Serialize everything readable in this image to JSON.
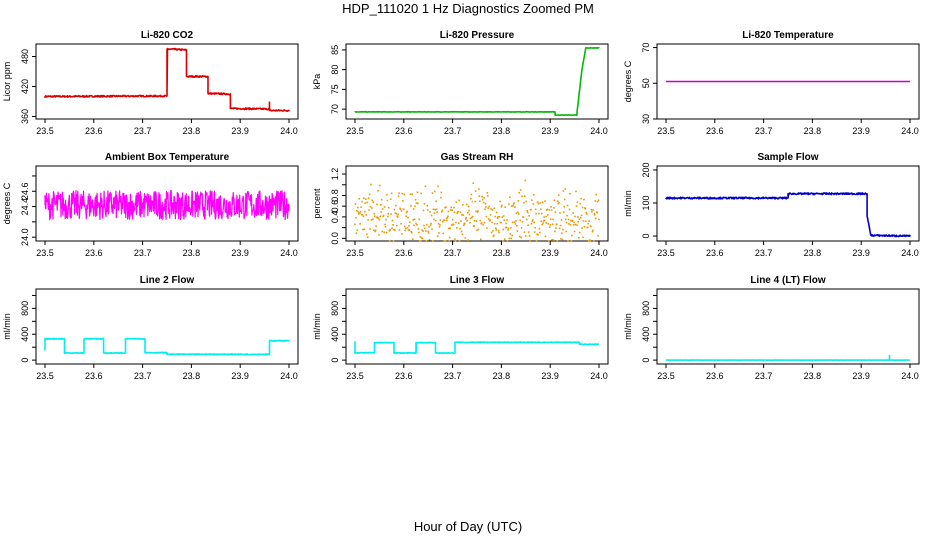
{
  "figure": {
    "title": "HDP_111020  1 Hz Diagnostics Zoomed PM",
    "xlabel": "Hour of Day (UTC)"
  },
  "chart_data": [
    {
      "type": "line",
      "title": "Li-820 CO2",
      "ylabel": "Licor ppm",
      "color": "#dd0000",
      "xlim": [
        23.5,
        24.0
      ],
      "ylim": [
        355,
        505
      ],
      "xticks": [
        "23.5",
        "23.6",
        "23.7",
        "23.8",
        "23.9",
        "24.0"
      ],
      "yticks": [
        360,
        420,
        480
      ],
      "noise": 1.5,
      "series": [
        {
          "x": [
            23.5,
            23.75,
            23.75,
            23.79,
            23.79,
            23.834,
            23.834,
            23.88,
            23.88,
            23.96,
            23.96,
            24.0
          ],
          "y": [
            400,
            401,
            495,
            493,
            440,
            440,
            406,
            405,
            376,
            375,
            372,
            372
          ]
        }
      ],
      "spikes": [
        [
          23.96,
          390
        ]
      ]
    },
    {
      "type": "line",
      "title": "Li-820 Pressure",
      "ylabel": "kPa",
      "color": "#00bb00",
      "xlim": [
        23.5,
        24.0
      ],
      "ylim": [
        67.5,
        86.5
      ],
      "xticks": [
        "23.5",
        "23.6",
        "23.7",
        "23.8",
        "23.9",
        "24.0"
      ],
      "yticks": [
        70,
        75,
        80,
        85
      ],
      "noise": 0.05,
      "series": [
        {
          "x": [
            23.5,
            23.91,
            23.91,
            23.955,
            23.955,
            23.965,
            23.973,
            24.0
          ],
          "y": [
            69.3,
            69.3,
            68.5,
            68.5,
            69.2,
            80,
            85.5,
            85.5
          ]
        }
      ]
    },
    {
      "type": "line",
      "title": "Li-820 Temperature",
      "ylabel": "degrees C",
      "color": "#cc00cc",
      "xlim": [
        23.5,
        24.0
      ],
      "ylim": [
        30,
        72
      ],
      "xticks": [
        "23.5",
        "23.6",
        "23.7",
        "23.8",
        "23.9",
        "24.0"
      ],
      "yticks": [
        30,
        50,
        70
      ],
      "noise": 0,
      "series": [
        {
          "x": [
            23.5,
            24.0
          ],
          "y": [
            51,
            51
          ]
        }
      ]
    },
    {
      "type": "line",
      "title": "Ambient Box Temperature",
      "ylabel": "degrees C",
      "color": "#ff00ff",
      "xlim": [
        23.5,
        24.0
      ],
      "ylim": [
        23.95,
        24.93
      ],
      "xticks": [
        "23.5",
        "23.6",
        "23.7",
        "23.8",
        "23.9",
        "24.0"
      ],
      "yticks": [
        24.0,
        24.2,
        24.4,
        24.6,
        24.8
      ],
      "ytick_labels": [
        "24.0",
        "",
        "24.4",
        "24.6",
        ""
      ],
      "noise": 0.19,
      "series": [
        {
          "x": [
            23.5,
            24.0
          ],
          "y": [
            24.42,
            24.42
          ]
        }
      ]
    },
    {
      "type": "scatter",
      "title": "Gas Stream RH",
      "ylabel": "percent",
      "color": "#ee9900",
      "xlim": [
        23.5,
        24.0
      ],
      "ylim": [
        -0.05,
        1.35
      ],
      "xticks": [
        "23.5",
        "23.6",
        "23.7",
        "23.8",
        "23.9",
        "24.0"
      ],
      "yticks": [
        0.0,
        0.2,
        0.4,
        0.6,
        0.8,
        1.0,
        1.2
      ],
      "ytick_labels": [
        "0.0",
        "",
        "0.4",
        "0.6",
        "0.8",
        "",
        "1.2"
      ],
      "noise": 0.32,
      "series": [
        {
          "x": [
            23.5,
            24.0
          ],
          "y": [
            0.38,
            0.38
          ]
        }
      ]
    },
    {
      "type": "line",
      "title": "Sample Flow",
      "ylabel": "ml/min",
      "color": "#0000cc",
      "xlim": [
        23.5,
        24.0
      ],
      "ylim": [
        -15,
        212
      ],
      "xticks": [
        "23.5",
        "23.6",
        "23.7",
        "23.8",
        "23.9",
        "24.0"
      ],
      "yticks": [
        0,
        100,
        200
      ],
      "noise": 2.5,
      "series": [
        {
          "x": [
            23.5,
            23.75,
            23.75,
            23.912,
            23.912,
            23.92,
            24.0
          ],
          "y": [
            115,
            115,
            128,
            128,
            60,
            2,
            0
          ]
        }
      ]
    },
    {
      "type": "line",
      "title": "Line 2 Flow",
      "ylabel": "ml/min",
      "color": "#00eeee",
      "xlim": [
        23.5,
        24.0
      ],
      "ylim": [
        -60,
        1100
      ],
      "xticks": [
        "23.5",
        "23.6",
        "23.7",
        "23.8",
        "23.9",
        "24.0"
      ],
      "yticks": [
        0,
        200,
        400,
        600,
        800,
        1000
      ],
      "ytick_labels": [
        "0",
        "",
        "400",
        "",
        "800",
        ""
      ],
      "noise": 6,
      "series": [
        {
          "x": [
            23.5,
            23.5,
            23.54,
            23.54,
            23.58,
            23.58,
            23.62,
            23.62,
            23.665,
            23.665,
            23.705,
            23.705,
            23.75,
            23.75,
            23.96,
            23.96,
            24.0
          ],
          "y": [
            150,
            330,
            330,
            110,
            110,
            330,
            330,
            110,
            110,
            330,
            330,
            115,
            115,
            90,
            90,
            300,
            300
          ]
        }
      ]
    },
    {
      "type": "line",
      "title": "Line 3 Flow",
      "ylabel": "ml/min",
      "color": "#00eeee",
      "xlim": [
        23.5,
        24.0
      ],
      "ylim": [
        -60,
        1100
      ],
      "xticks": [
        "23.5",
        "23.6",
        "23.7",
        "23.8",
        "23.9",
        "24.0"
      ],
      "yticks": [
        0,
        200,
        400,
        600,
        800,
        1000
      ],
      "ytick_labels": [
        "0",
        "",
        "400",
        "",
        "800",
        ""
      ],
      "noise": 5,
      "series": [
        {
          "x": [
            23.5,
            23.5,
            23.51,
            23.51,
            23.54,
            23.54,
            23.58,
            23.58,
            23.625,
            23.625,
            23.665,
            23.665,
            23.705,
            23.705,
            23.96,
            23.96,
            24.0
          ],
          "y": [
            290,
            110,
            110,
            115,
            115,
            270,
            270,
            110,
            110,
            270,
            270,
            110,
            110,
            275,
            275,
            245,
            245
          ]
        }
      ]
    },
    {
      "type": "line",
      "title": "Line 4 (LT) Flow",
      "ylabel": "ml/min",
      "color": "#00eeee",
      "xlim": [
        23.5,
        24.0
      ],
      "ylim": [
        -60,
        1100
      ],
      "xticks": [
        "23.5",
        "23.6",
        "23.7",
        "23.8",
        "23.9",
        "24.0"
      ],
      "yticks": [
        0,
        200,
        400,
        600,
        800,
        1000
      ],
      "ytick_labels": [
        "0",
        "",
        "400",
        "",
        "800",
        ""
      ],
      "noise": 1,
      "series": [
        {
          "x": [
            23.5,
            24.0
          ],
          "y": [
            0,
            0
          ]
        }
      ],
      "spikes": [
        [
          23.958,
          80
        ]
      ]
    }
  ]
}
